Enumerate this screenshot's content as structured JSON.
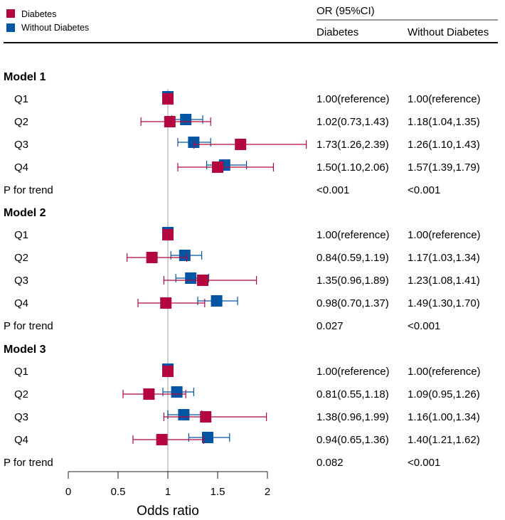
{
  "legend": [
    {
      "label": "Diabetes",
      "color": "#b5073f"
    },
    {
      "label": "Without Diabetes",
      "color": "#0455a3"
    }
  ],
  "table_header": {
    "group": "OR (95%CI)",
    "col1": "Diabetes",
    "col2": "Without Diabetes"
  },
  "chart_data": {
    "type": "forest",
    "xlabel": "Odds ratio",
    "xlim": [
      0,
      2
    ],
    "xticks": [
      "0",
      "0.5",
      "1",
      "1.5",
      "2"
    ],
    "reference_line": 1,
    "models": [
      {
        "title": "Model 1",
        "rows": [
          {
            "label": "Q1",
            "d": [
              1,
              1,
              1
            ],
            "w": [
              1,
              1,
              1
            ],
            "d_text": "1.00(reference)",
            "w_text": "1.00(reference)"
          },
          {
            "label": "Q2",
            "d": [
              1.02,
              0.73,
              1.43
            ],
            "w": [
              1.18,
              1.04,
              1.35
            ],
            "d_text": "1.02(0.73,1.43)",
            "w_text": "1.18(1.04,1.35)"
          },
          {
            "label": "Q3",
            "d": [
              1.73,
              1.26,
              2.39
            ],
            "w": [
              1.26,
              1.1,
              1.43
            ],
            "d_text": "1.73(1.26,2.39)",
            "w_text": "1.26(1.10,1.43)"
          },
          {
            "label": "Q4",
            "d": [
              1.5,
              1.1,
              2.06
            ],
            "w": [
              1.57,
              1.39,
              1.79
            ],
            "d_text": "1.50(1.10,2.06)",
            "w_text": "1.57(1.39,1.79)"
          }
        ],
        "trend_label": "P for trend",
        "trend_d": "<0.001",
        "trend_w": "<0.001"
      },
      {
        "title": "Model 2",
        "rows": [
          {
            "label": "Q1",
            "d": [
              1,
              1,
              1
            ],
            "w": [
              1,
              1,
              1
            ],
            "d_text": "1.00(reference)",
            "w_text": "1.00(reference)"
          },
          {
            "label": "Q2",
            "d": [
              0.84,
              0.59,
              1.19
            ],
            "w": [
              1.17,
              1.03,
              1.34
            ],
            "d_text": "0.84(0.59,1.19)",
            "w_text": "1.17(1.03,1.34)"
          },
          {
            "label": "Q3",
            "d": [
              1.35,
              0.96,
              1.89
            ],
            "w": [
              1.23,
              1.08,
              1.41
            ],
            "d_text": "1.35(0.96,1.89)",
            "w_text": "1.23(1.08,1.41)"
          },
          {
            "label": "Q4",
            "d": [
              0.98,
              0.7,
              1.37
            ],
            "w": [
              1.49,
              1.3,
              1.7
            ],
            "d_text": "0.98(0.70,1.37)",
            "w_text": "1.49(1.30,1.70)"
          }
        ],
        "trend_label": "P for trend",
        "trend_d": "0.027",
        "trend_w": "<0.001"
      },
      {
        "title": "Model 3",
        "rows": [
          {
            "label": "Q1",
            "d": [
              1,
              1,
              1
            ],
            "w": [
              1,
              1,
              1
            ],
            "d_text": "1.00(reference)",
            "w_text": "1.00(reference)"
          },
          {
            "label": "Q2",
            "d": [
              0.81,
              0.55,
              1.18
            ],
            "w": [
              1.09,
              0.95,
              1.26
            ],
            "d_text": "0.81(0.55,1.18)",
            "w_text": "1.09(0.95,1.26)"
          },
          {
            "label": "Q3",
            "d": [
              1.38,
              0.96,
              1.99
            ],
            "w": [
              1.16,
              1.0,
              1.34
            ],
            "d_text": "1.38(0.96,1.99)",
            "w_text": "1.16(1.00,1.34)"
          },
          {
            "label": "Q4",
            "d": [
              0.94,
              0.65,
              1.36
            ],
            "w": [
              1.4,
              1.21,
              1.62
            ],
            "d_text": "0.94(0.65,1.36)",
            "w_text": "1.40(1.21,1.62)"
          }
        ],
        "trend_label": "P for trend",
        "trend_d": "0.082",
        "trend_w": "<0.001"
      }
    ]
  }
}
